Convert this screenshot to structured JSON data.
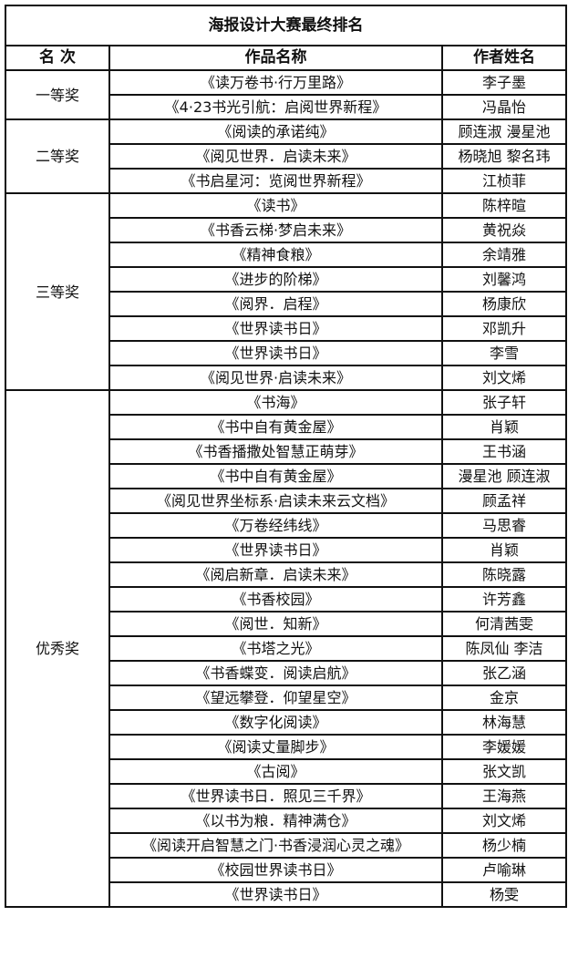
{
  "title": "海报设计大赛最终排名",
  "headers": {
    "rank": "名 次",
    "work": "作品名称",
    "author": "作者姓名"
  },
  "groups": [
    {
      "rank": "一等奖",
      "entries": [
        {
          "work": "《读万卷书·行万里路》",
          "author": "李子墨"
        },
        {
          "work": "《4·23书光引航：启阅世界新程》",
          "author": "冯晶怡"
        }
      ]
    },
    {
      "rank": "二等奖",
      "entries": [
        {
          "work": "《阅读的承诺纯》",
          "author": "顾连淑  漫星池"
        },
        {
          "work": "《阅见世界．启读未来》",
          "author": "杨晓旭  黎名玮"
        },
        {
          "work": "《书启星河：览阅世界新程》",
          "author": "江桢菲"
        }
      ]
    },
    {
      "rank": "三等奖",
      "entries": [
        {
          "work": "《读书》",
          "author": "陈梓暄"
        },
        {
          "work": "《书香云梯·梦启未来》",
          "author": "黄祝焱"
        },
        {
          "work": "《精神食粮》",
          "author": "余靖雅"
        },
        {
          "work": "《进步的阶梯》",
          "author": "刘馨鸿"
        },
        {
          "work": "《阅界．启程》",
          "author": "杨康欣"
        },
        {
          "work": "《世界读书日》",
          "author": "邓凯升"
        },
        {
          "work": "《世界读书日》",
          "author": "李雪"
        },
        {
          "work": "《阅见世界·启读未来》",
          "author": "刘文烯"
        }
      ]
    },
    {
      "rank": "优秀奖",
      "entries": [
        {
          "work": "《书海》",
          "author": "张子轩"
        },
        {
          "work": "《书中自有黄金屋》",
          "author": "肖颖"
        },
        {
          "work": "《书香播撒处智慧正萌芽》",
          "author": "王书涵"
        },
        {
          "work": "《书中自有黄金屋》",
          "author": "漫星池  顾连淑"
        },
        {
          "work": "《阅见世界坐标系·启读未来云文档》",
          "author": "顾孟祥"
        },
        {
          "work": "《万卷经纬线》",
          "author": "马思睿"
        },
        {
          "work": "《世界读书日》",
          "author": "肖颖"
        },
        {
          "work": "《阅启新章．启读未来》",
          "author": "陈晓露"
        },
        {
          "work": "《书香校园》",
          "author": "许芳鑫"
        },
        {
          "work": "《阅世．知新》",
          "author": "何清茜雯"
        },
        {
          "work": "《书塔之光》",
          "author": "陈凤仙  李洁"
        },
        {
          "work": "《书香蝶变．阅读启航》",
          "author": "张乙涵"
        },
        {
          "work": "《望远攀登．仰望星空》",
          "author": "金京"
        },
        {
          "work": "《数字化阅读》",
          "author": "林海慧"
        },
        {
          "work": "《阅读丈量脚步》",
          "author": "李媛媛"
        },
        {
          "work": "《古阅》",
          "author": "张文凯"
        },
        {
          "work": "《世界读书日．照见三千界》",
          "author": "王海燕"
        },
        {
          "work": "《以书为粮．精神满仓》",
          "author": "刘文烯"
        },
        {
          "work": "《阅读开启智慧之门·书香浸润心灵之魂》",
          "author": "杨少楠"
        },
        {
          "work": "《校园世界读书日》",
          "author": "卢喻琳"
        },
        {
          "work": "《世界读书日》",
          "author": "杨雯"
        }
      ]
    }
  ]
}
